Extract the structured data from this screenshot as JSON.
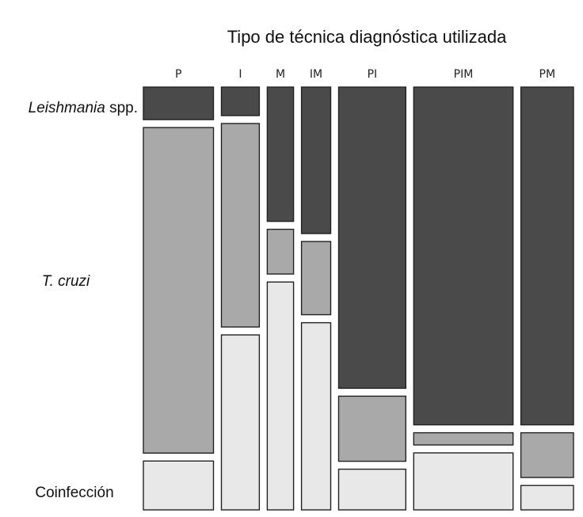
{
  "chart_data": {
    "type": "mosaic",
    "title": "Tipo de técnica diagnóstica utilizada",
    "categories": [
      "P",
      "I",
      "M",
      "IM",
      "PI",
      "PIM",
      "PM"
    ],
    "column_weights": [
      0.24,
      0.13,
      0.09,
      0.1,
      0.23,
      0.34,
      0.18
    ],
    "row_order": [
      "Leishmania spp.",
      "T. cruzi",
      "Coinfección"
    ],
    "row_labels": {
      "leishmania": {
        "italic": "Leishmania",
        "normal": " spp."
      },
      "tcruzi": {
        "italic": "T. cruzi",
        "normal": ""
      },
      "coinfeccion": {
        "italic": "",
        "normal": "Coinfección"
      }
    },
    "series": [
      {
        "name": "Leishmania spp.",
        "color": "#4a4a4a",
        "values": [
          0.08,
          0.07,
          0.33,
          0.36,
          0.74,
          0.83,
          0.83
        ]
      },
      {
        "name": "T. cruzi",
        "color": "#a9a9a9",
        "values": [
          0.8,
          0.5,
          0.11,
          0.18,
          0.16,
          0.03,
          0.11
        ]
      },
      {
        "name": "Coinfección",
        "color": "#e8e8e8",
        "values": [
          0.12,
          0.43,
          0.56,
          0.46,
          0.1,
          0.14,
          0.06
        ]
      }
    ]
  }
}
